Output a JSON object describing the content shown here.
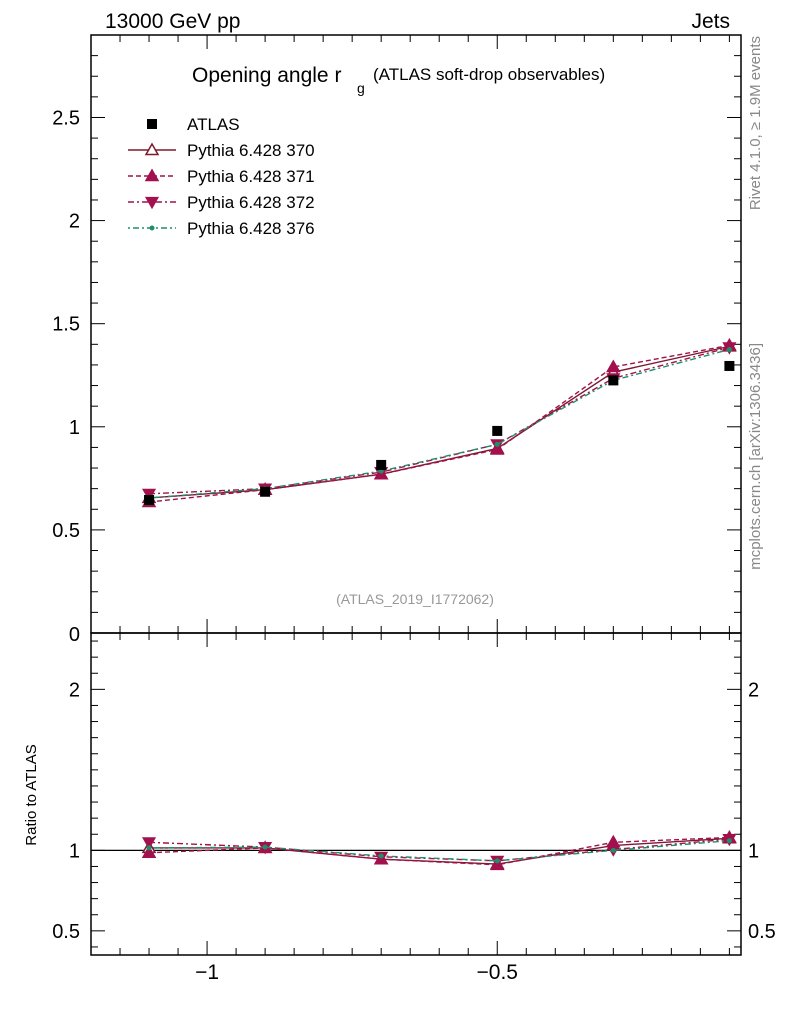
{
  "header": {
    "left": "13000 GeV pp",
    "right": "Jets"
  },
  "side_text": {
    "rivet": "Rivet 4.1.0, ≥ 1.9M events",
    "mcplots": "mcplots.cern.ch [arXiv:1306.3436]"
  },
  "title": {
    "main": "Opening angle r",
    "sub": "g",
    "suffix": "(ATLAS soft-drop observables)"
  },
  "analysis_id": "(ATLAS_2019_I1772062)",
  "chart_data": {
    "type": "line",
    "xlim": [
      -1.2,
      -0.08
    ],
    "main": {
      "ylim": [
        0,
        2.9
      ],
      "yticks": [
        {
          "v": 0.5,
          "label": "0.5"
        },
        {
          "v": 1,
          "label": "1"
        },
        {
          "v": 1.5,
          "label": "1.5"
        },
        {
          "v": 2,
          "label": "2"
        },
        {
          "v": 2.5,
          "label": "2.5"
        }
      ],
      "zero_label": "0"
    },
    "ratio": {
      "ylim": [
        0.35,
        2.35
      ],
      "ylabel": "Ratio to ATLAS",
      "yticks": [
        {
          "v": 0.5,
          "label": "0.5"
        },
        {
          "v": 1,
          "label": "1"
        },
        {
          "v": 2,
          "label": "2"
        }
      ]
    },
    "xticks": [
      {
        "v": -1,
        "label": "−1"
      },
      {
        "v": -0.5,
        "label": "−0.5"
      }
    ],
    "x": [
      -1.1,
      -0.9,
      -0.7,
      -0.5,
      -0.3,
      -0.1
    ],
    "data": {
      "name": "ATLAS",
      "values": [
        0.645,
        0.685,
        0.815,
        0.98,
        1.225,
        1.295
      ]
    },
    "series": [
      {
        "name": "Pythia 6.428 370",
        "color": "#7b1a2e",
        "marker": "triangle-up-open",
        "dash": "",
        "values": [
          0.655,
          0.695,
          0.77,
          0.895,
          1.265,
          1.39
        ],
        "ratio": [
          1.015,
          1.015,
          0.945,
          0.915,
          1.03,
          1.075
        ]
      },
      {
        "name": "Pythia 6.428 371",
        "color": "#a3104e",
        "marker": "triangle-up",
        "dash": "5,3",
        "values": [
          0.635,
          0.695,
          0.77,
          0.89,
          1.29,
          1.395
        ],
        "ratio": [
          0.985,
          1.015,
          0.945,
          0.91,
          1.05,
          1.08
        ]
      },
      {
        "name": "Pythia 6.428 372",
        "color": "#a3104e",
        "marker": "triangle-down",
        "dash": "6,3,2,3",
        "values": [
          0.675,
          0.7,
          0.78,
          0.915,
          1.235,
          1.385
        ],
        "ratio": [
          1.05,
          1.02,
          0.96,
          0.935,
          1.005,
          1.07
        ]
      },
      {
        "name": "Pythia 6.428 376",
        "color": "#1f8f6a",
        "marker": "dot",
        "dash": "2,3,6,3",
        "values": [
          0.655,
          0.7,
          0.785,
          0.915,
          1.225,
          1.375
        ],
        "ratio": [
          1.015,
          1.02,
          0.965,
          0.935,
          1.0,
          1.06
        ]
      }
    ]
  }
}
